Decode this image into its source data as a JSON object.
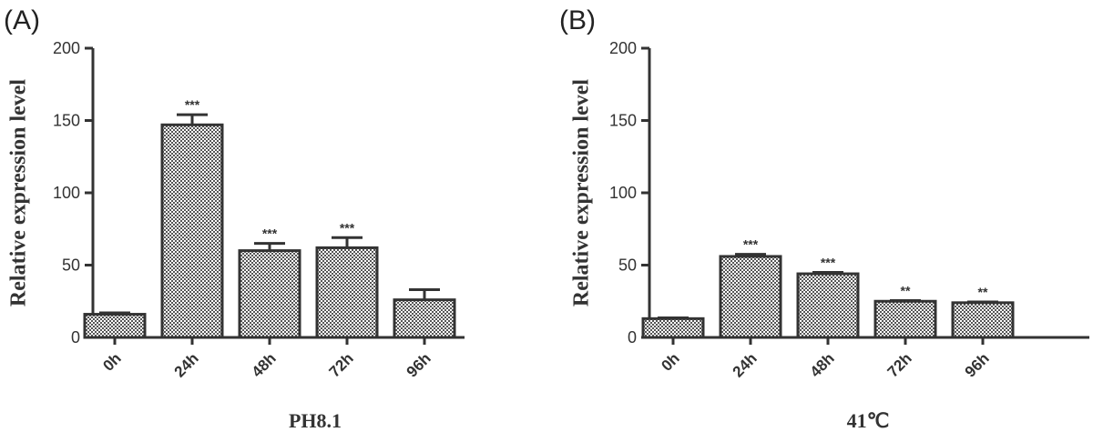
{
  "chart_data": [
    {
      "type": "bar",
      "panel_label": "(A)",
      "xlabel": "PH8.1",
      "ylabel": "Relative expression level",
      "ylim": [
        0,
        200
      ],
      "yticks": [
        "0",
        "50",
        "100",
        "150",
        "200"
      ],
      "categories": [
        "0h",
        "24h",
        "48h",
        "72h",
        "96h"
      ],
      "values": [
        16,
        147,
        60,
        62,
        26
      ],
      "errors": [
        1,
        7,
        5,
        7,
        7
      ],
      "significance": [
        "",
        "***",
        "***",
        "***",
        ""
      ],
      "bar_fill": "checkered",
      "grid": false
    },
    {
      "type": "bar",
      "panel_label": "(B)",
      "xlabel": "41℃",
      "ylabel": "Relative expression level",
      "ylim": [
        0,
        200
      ],
      "yticks": [
        "0",
        "50",
        "100",
        "150",
        "200"
      ],
      "categories": [
        "0h",
        "24h",
        "48h",
        "72h",
        "96h"
      ],
      "values": [
        13,
        56,
        44,
        25,
        24
      ],
      "errors": [
        0.5,
        1.5,
        1,
        0.5,
        0.5
      ],
      "significance": [
        "",
        "***",
        "***",
        "**",
        "**"
      ],
      "bar_fill": "checkered",
      "grid": false
    }
  ],
  "colors": {
    "axis": "#333333",
    "bar_dark": "#555555",
    "bar_light": "#ffffff"
  }
}
